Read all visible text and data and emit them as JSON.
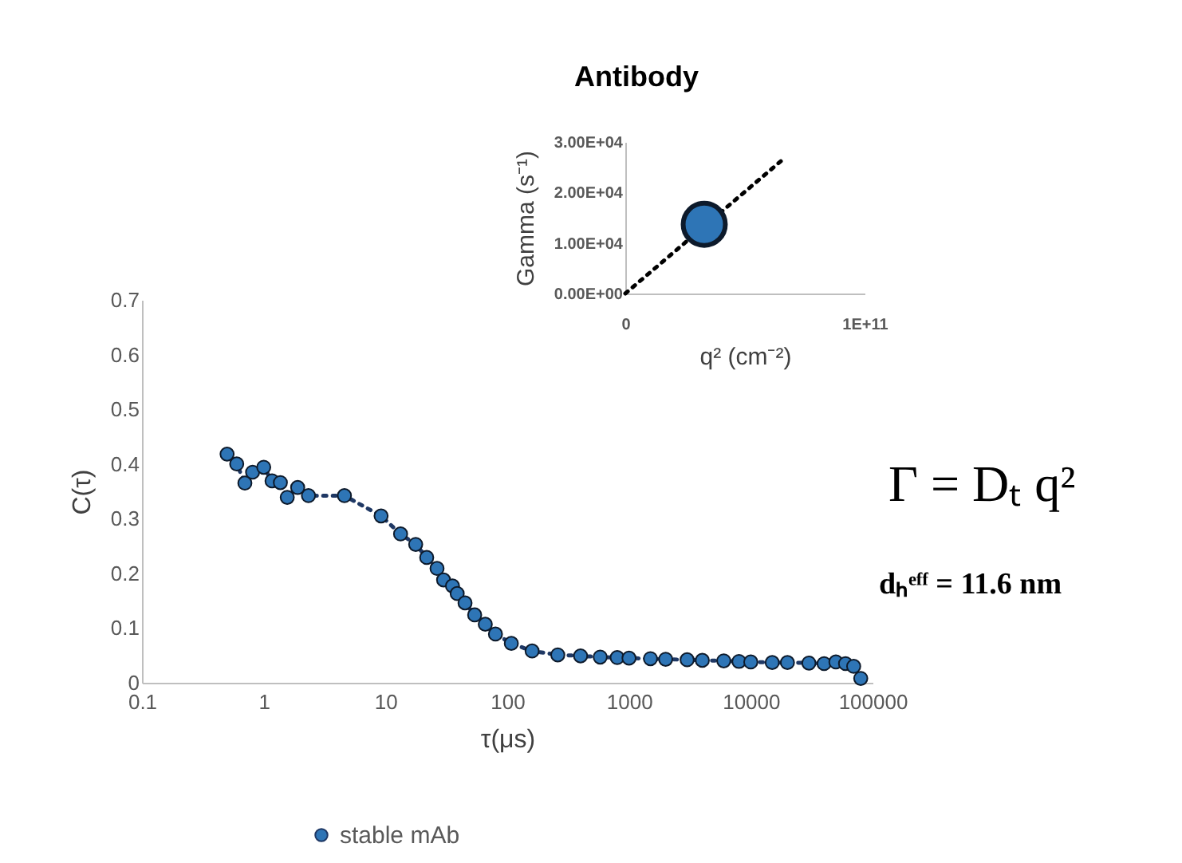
{
  "chart_data": [
    {
      "type": "line",
      "xlabel": "τ(μs)",
      "ylabel": "C(τ)",
      "log": "x",
      "marker": "circle",
      "line_style": "dotted",
      "legend": "bottom",
      "grid": false,
      "xlim": [
        0.1,
        100000
      ],
      "xticks": [
        0.1,
        1,
        10,
        100,
        1000,
        10000,
        100000
      ],
      "ylim": [
        0,
        0.7
      ],
      "yticks": [
        0,
        0.1,
        0.2,
        0.3,
        0.4,
        0.5,
        0.6,
        0.7
      ],
      "series": [
        {
          "name": "stable mAb",
          "color": "#2e75b6",
          "x": [
            0.5,
            0.6,
            0.7,
            0.81,
            1.0,
            1.17,
            1.37,
            1.56,
            1.9,
            2.33,
            4.6,
            9.2,
            13.3,
            17.7,
            21.8,
            26.5,
            30,
            35.5,
            38.8,
            45,
            54,
            66,
            80,
            108,
            160,
            260,
            400,
            580,
            800,
            1000,
            1500,
            2000,
            3000,
            4000,
            6000,
            8000,
            10000,
            15000,
            20000,
            30000,
            40000,
            50000,
            60000,
            70000,
            80000
          ],
          "values": [
            0.418,
            0.4,
            0.365,
            0.385,
            0.394,
            0.369,
            0.366,
            0.339,
            0.357,
            0.342,
            0.342,
            0.305,
            0.272,
            0.253,
            0.229,
            0.209,
            0.188,
            0.177,
            0.163,
            0.146,
            0.124,
            0.107,
            0.089,
            0.072,
            0.058,
            0.051,
            0.049,
            0.047,
            0.046,
            0.045,
            0.044,
            0.043,
            0.042,
            0.041,
            0.04,
            0.039,
            0.038,
            0.037,
            0.037,
            0.036,
            0.035,
            0.038,
            0.035,
            0.03,
            0.008
          ]
        }
      ],
      "annotations": [
        "Γ = Dₜ q²",
        "dₕᵉᶠᶠ =  11.6 nm"
      ]
    },
    {
      "type": "scatter",
      "title": "Antibody",
      "xlabel": "q² (cm⁻²)",
      "ylabel": "Gamma (s⁻¹)",
      "grid": false,
      "xlim": [
        0,
        100000000000
      ],
      "xticks": [
        {
          "value": 0,
          "label": "0"
        },
        {
          "value": 100000000000,
          "label": "1E+11"
        }
      ],
      "ylim": [
        0,
        30000
      ],
      "yticks": [
        {
          "value": 0,
          "label": "0.00E+00"
        },
        {
          "value": 10000,
          "label": "1.00E+04"
        },
        {
          "value": 20000,
          "label": "2.00E+04"
        },
        {
          "value": 30000,
          "label": "3.00E+04"
        }
      ],
      "series": [
        {
          "type": "line",
          "color": "#000000",
          "line_style": "dotted",
          "marker": "none",
          "x": [
            0,
            66000000000
          ],
          "values": [
            0,
            26600
          ]
        },
        {
          "type": "scatter",
          "color": "#2e75b6",
          "marker": "circle",
          "x": [
            33000000000
          ],
          "values": [
            13700
          ]
        }
      ]
    }
  ]
}
